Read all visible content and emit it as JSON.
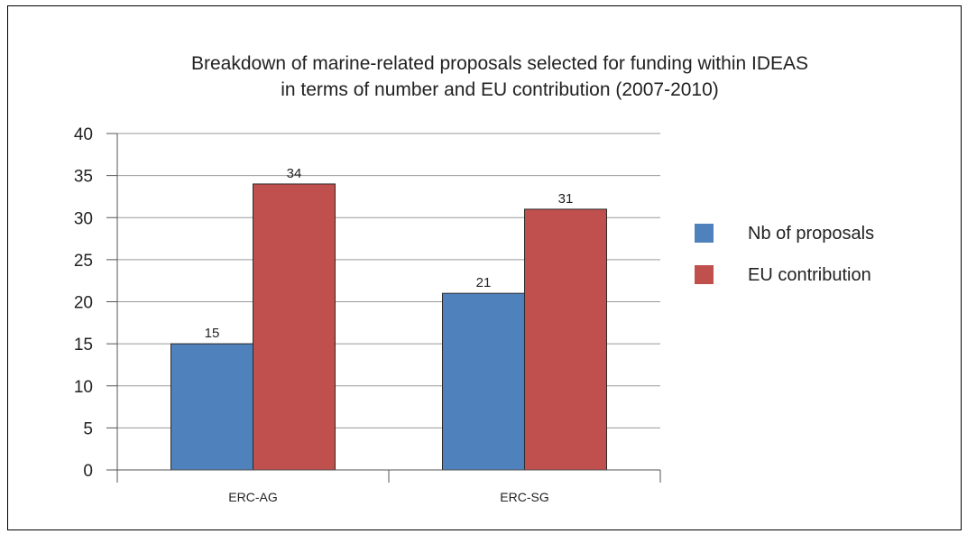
{
  "chart_data": {
    "type": "bar",
    "title": "Breakdown of marine-related proposals selected for funding within IDEAS",
    "subtitle": "in terms of number and EU contribution (2007-2010)",
    "categories": [
      "ERC-AG",
      "ERC-SG"
    ],
    "series": [
      {
        "name": "Nb of proposals",
        "values": [
          15,
          21
        ],
        "color": "#4f81bd"
      },
      {
        "name": "EU contribution",
        "values": [
          34,
          31
        ],
        "color": "#c0504d"
      }
    ],
    "ylim": [
      0,
      40
    ],
    "yticks": [
      0,
      5,
      10,
      15,
      20,
      25,
      30,
      35,
      40
    ],
    "grid": true,
    "legend_position": "right",
    "data_labels": true
  }
}
